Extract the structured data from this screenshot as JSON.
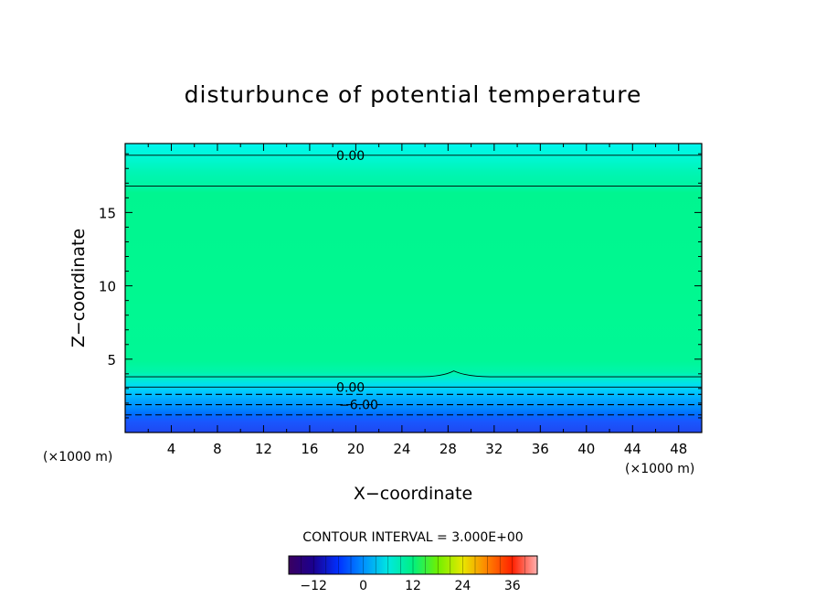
{
  "chart_data": {
    "type": "contour",
    "title": "disturbunce of potential temperature",
    "xlabel": "X−coordinate",
    "ylabel": "Z−coordinate",
    "x_unit_left": "(×1000 m)",
    "x_unit_right": "(×1000 m)",
    "xlim": [
      0,
      50
    ],
    "ylim": [
      0,
      19.7
    ],
    "x_ticks": [
      "4",
      "8",
      "12",
      "16",
      "20",
      "24",
      "28",
      "32",
      "36",
      "40",
      "44",
      "48"
    ],
    "x_tick_values": [
      4,
      8,
      12,
      16,
      20,
      24,
      28,
      32,
      36,
      40,
      44,
      48
    ],
    "y_ticks": [
      "5",
      "10",
      "15"
    ],
    "y_tick_values": [
      5,
      10,
      15
    ],
    "contour_labels": [
      {
        "text": "0.00",
        "x": 17.8,
        "z": 18.9
      },
      {
        "text": "0.00",
        "x": 17.8,
        "z": 3.1
      },
      {
        "text": "−6.00",
        "x": 18.5,
        "z": 1.9
      }
    ],
    "contour_lines": [
      {
        "level": 0,
        "z": 18.9,
        "style": "solid"
      },
      {
        "level": 3,
        "z": 16.8,
        "style": "solid"
      },
      {
        "level": 3,
        "z": 3.8,
        "style": "solid",
        "bump_x": 28.5,
        "bump_z": 4.2
      },
      {
        "level": 0,
        "z": 3.1,
        "style": "solid"
      },
      {
        "level": -3,
        "z": 2.6,
        "style": "dashed"
      },
      {
        "level": -6,
        "z": 1.9,
        "style": "dashed"
      },
      {
        "level": -9,
        "z": 1.2,
        "style": "dashed"
      }
    ],
    "contour_interval_label": "CONTOUR INTERVAL = 3.000E+00",
    "colorbar": {
      "min": -18,
      "max": 42,
      "ticks": [
        "−12",
        "0",
        "12",
        "24",
        "36"
      ],
      "tick_values": [
        -12,
        0,
        12,
        24,
        36
      ]
    }
  }
}
